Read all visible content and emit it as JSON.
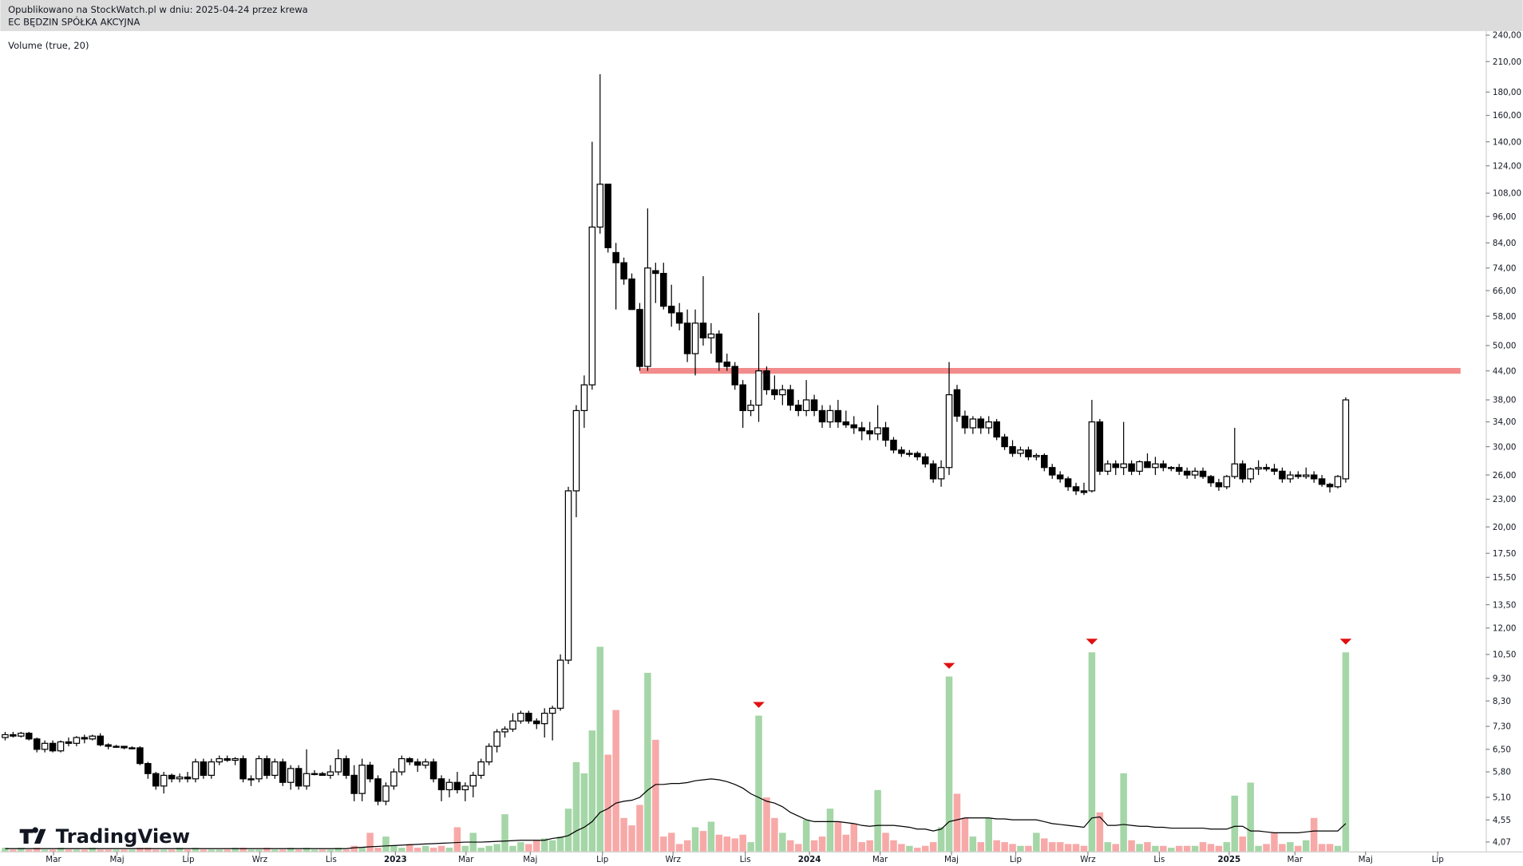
{
  "chart_data": {
    "type": "candlestick",
    "title": "EC BĘDZIN SPÓŁKA AKCYJNA",
    "subtitle": "Opublikowano na StockWatch.pl w dniu: 2025-04-24 przez krewa",
    "indicator_label": "Volume (true, 20)",
    "watermark": "TradingView",
    "log_scale": true,
    "ylim": [
      3.88,
      245
    ],
    "yticks": [
      {
        "value": 240,
        "label": "240,00"
      },
      {
        "value": 210,
        "label": "210,00"
      },
      {
        "value": 180,
        "label": "180,00"
      },
      {
        "value": 160,
        "label": "160,00"
      },
      {
        "value": 140,
        "label": "140,00"
      },
      {
        "value": 124,
        "label": "124,00"
      },
      {
        "value": 108,
        "label": "108,00"
      },
      {
        "value": 96,
        "label": "96,00"
      },
      {
        "value": 84,
        "label": "84,00"
      },
      {
        "value": 74,
        "label": "74,00"
      },
      {
        "value": 66,
        "label": "66,00"
      },
      {
        "value": 58,
        "label": "58,00"
      },
      {
        "value": 50,
        "label": "50,00"
      },
      {
        "value": 44,
        "label": "44,00"
      },
      {
        "value": 38,
        "label": "38,00"
      },
      {
        "value": 34,
        "label": "34,00"
      },
      {
        "value": 30,
        "label": "30,00"
      },
      {
        "value": 26,
        "label": "26,00"
      },
      {
        "value": 23,
        "label": "23,00"
      },
      {
        "value": 20,
        "label": "20,00"
      },
      {
        "value": 17.5,
        "label": "17,50"
      },
      {
        "value": 15.5,
        "label": "15,50"
      },
      {
        "value": 13.5,
        "label": "13,50"
      },
      {
        "value": 12,
        "label": "12,00"
      },
      {
        "value": 10.5,
        "label": "10,50"
      },
      {
        "value": 9.3,
        "label": "9,30"
      },
      {
        "value": 8.3,
        "label": "8,30"
      },
      {
        "value": 7.3,
        "label": "7,30"
      },
      {
        "value": 6.5,
        "label": "6,50"
      },
      {
        "value": 5.8,
        "label": "5,80"
      },
      {
        "value": 5.1,
        "label": "5,10"
      },
      {
        "value": 4.55,
        "label": "4,55"
      },
      {
        "value": 4.07,
        "label": "4,07"
      }
    ],
    "xlim": [
      -0.612,
      186.66
    ],
    "xticks": [
      {
        "value": 6.1,
        "label": "Mar"
      },
      {
        "value": 14.1,
        "label": "Maj"
      },
      {
        "value": 23.1,
        "label": "Lip"
      },
      {
        "value": 32.1,
        "label": "Wrz"
      },
      {
        "value": 41.1,
        "label": "Lis"
      },
      {
        "value": 49.2,
        "label": "2023"
      },
      {
        "value": 58.1,
        "label": "Mar"
      },
      {
        "value": 66.2,
        "label": "Maj"
      },
      {
        "value": 75.3,
        "label": "Lip"
      },
      {
        "value": 84.2,
        "label": "Wrz"
      },
      {
        "value": 93.3,
        "label": "Lis"
      },
      {
        "value": 101.4,
        "label": "2024"
      },
      {
        "value": 110.3,
        "label": "Mar"
      },
      {
        "value": 119.3,
        "label": "Maj"
      },
      {
        "value": 127.4,
        "label": "Lip"
      },
      {
        "value": 136.5,
        "label": "Wrz"
      },
      {
        "value": 145.5,
        "label": "Lis"
      },
      {
        "value": 154.3,
        "label": "2025"
      },
      {
        "value": 162.6,
        "label": "Mar"
      },
      {
        "value": 171.5,
        "label": "Maj"
      },
      {
        "value": 180.6,
        "label": "Lip"
      }
    ],
    "up_color": "#ffffff",
    "down_color": "#000000",
    "volume_up_color": "#a5d6a7",
    "volume_down_color": "#f7a9a8",
    "ma_color": "#000000",
    "signal_color": "#e01010",
    "hline": {
      "value": 44,
      "from": 80,
      "color": "#f28b8b"
    },
    "vlim": [
      0,
      120
    ],
    "signals": [
      95,
      119,
      137,
      169
    ],
    "ohlc": [
      [
        6.9,
        7.1,
        6.8,
        7.0
      ],
      [
        7.0,
        7.1,
        6.9,
        6.95
      ],
      [
        6.95,
        7.1,
        6.9,
        7.05
      ],
      [
        7.05,
        7.1,
        6.8,
        6.85
      ],
      [
        6.85,
        6.9,
        6.4,
        6.5
      ],
      [
        6.5,
        6.8,
        6.4,
        6.7
      ],
      [
        6.7,
        6.8,
        6.4,
        6.45
      ],
      [
        6.45,
        6.8,
        6.4,
        6.75
      ],
      [
        6.75,
        6.9,
        6.6,
        6.7
      ],
      [
        6.7,
        6.95,
        6.6,
        6.9
      ],
      [
        6.9,
        7.0,
        6.7,
        6.85
      ],
      [
        6.85,
        7.0,
        6.8,
        6.95
      ],
      [
        6.95,
        7.05,
        6.6,
        6.65
      ],
      [
        6.65,
        6.7,
        6.5,
        6.6
      ],
      [
        6.6,
        6.65,
        6.55,
        6.6
      ],
      [
        6.6,
        6.6,
        6.5,
        6.55
      ],
      [
        6.55,
        6.6,
        6.5,
        6.55
      ],
      [
        6.55,
        6.6,
        6.0,
        6.05
      ],
      [
        6.05,
        6.1,
        5.6,
        5.75
      ],
      [
        5.75,
        5.8,
        5.3,
        5.4
      ],
      [
        5.4,
        5.8,
        5.2,
        5.7
      ],
      [
        5.7,
        5.75,
        5.5,
        5.6
      ],
      [
        5.6,
        5.75,
        5.5,
        5.65
      ],
      [
        5.65,
        5.8,
        5.5,
        5.6
      ],
      [
        5.6,
        6.2,
        5.5,
        6.1
      ],
      [
        6.1,
        6.2,
        5.6,
        5.7
      ],
      [
        5.7,
        6.2,
        5.6,
        6.1
      ],
      [
        6.1,
        6.3,
        6.0,
        6.2
      ],
      [
        6.2,
        6.3,
        6.1,
        6.15
      ],
      [
        6.15,
        6.25,
        6.0,
        6.2
      ],
      [
        6.2,
        6.3,
        5.5,
        5.6
      ],
      [
        5.6,
        5.7,
        5.4,
        5.6
      ],
      [
        5.6,
        6.3,
        5.5,
        6.2
      ],
      [
        6.2,
        6.3,
        5.6,
        5.7
      ],
      [
        5.7,
        6.2,
        5.6,
        6.1
      ],
      [
        6.1,
        6.2,
        5.4,
        5.5
      ],
      [
        5.5,
        6.0,
        5.3,
        5.9
      ],
      [
        5.9,
        6.0,
        5.3,
        5.4
      ],
      [
        5.4,
        6.5,
        5.3,
        5.75
      ],
      [
        5.75,
        5.85,
        5.7,
        5.75
      ],
      [
        5.75,
        5.8,
        5.7,
        5.7
      ],
      [
        5.7,
        6.0,
        5.6,
        5.8
      ],
      [
        5.8,
        6.5,
        5.7,
        6.2
      ],
      [
        6.2,
        6.3,
        5.6,
        5.7
      ],
      [
        5.7,
        6.0,
        5.0,
        5.2
      ],
      [
        5.2,
        6.2,
        5.0,
        6.0
      ],
      [
        6.0,
        6.1,
        5.5,
        5.6
      ],
      [
        5.6,
        5.7,
        4.9,
        5.0
      ],
      [
        5.0,
        5.5,
        4.9,
        5.4
      ],
      [
        5.4,
        5.9,
        5.3,
        5.8
      ],
      [
        5.8,
        6.3,
        5.7,
        6.2
      ],
      [
        6.2,
        6.25,
        6.0,
        6.1
      ],
      [
        6.1,
        6.2,
        5.8,
        6.0
      ],
      [
        6.0,
        6.2,
        5.9,
        6.1
      ],
      [
        6.1,
        6.2,
        5.5,
        5.6
      ],
      [
        5.6,
        5.7,
        5.0,
        5.3
      ],
      [
        5.3,
        5.6,
        5.1,
        5.5
      ],
      [
        5.5,
        5.8,
        5.2,
        5.3
      ],
      [
        5.3,
        5.5,
        5.0,
        5.4
      ],
      [
        5.4,
        5.8,
        5.1,
        5.7
      ],
      [
        5.7,
        6.2,
        5.6,
        6.1
      ],
      [
        6.1,
        6.7,
        6.0,
        6.6
      ],
      [
        6.6,
        7.2,
        6.4,
        7.1
      ],
      [
        7.1,
        7.3,
        6.9,
        7.2
      ],
      [
        7.2,
        7.8,
        7.1,
        7.5
      ],
      [
        7.5,
        7.9,
        7.4,
        7.8
      ],
      [
        7.8,
        7.9,
        7.4,
        7.5
      ],
      [
        7.5,
        7.6,
        7.2,
        7.4
      ],
      [
        7.4,
        8.0,
        6.9,
        7.8
      ],
      [
        7.8,
        8.1,
        6.8,
        8.0
      ],
      [
        8.0,
        10.5,
        7.9,
        10.2
      ],
      [
        10.2,
        24.5,
        10.0,
        24.0
      ],
      [
        24.0,
        37,
        21,
        36
      ],
      [
        36,
        43,
        33,
        41
      ],
      [
        41,
        140,
        40,
        91
      ],
      [
        91,
        197,
        88,
        113
      ],
      [
        113,
        113,
        80,
        82
      ],
      [
        80,
        84,
        60,
        76
      ],
      [
        76,
        78,
        68,
        70
      ],
      [
        70,
        72,
        60,
        60
      ],
      [
        60,
        62,
        44,
        45
      ],
      [
        45,
        100,
        44,
        74
      ],
      [
        73,
        76,
        62,
        72
      ],
      [
        72,
        76,
        60,
        61
      ],
      [
        61,
        68,
        55,
        59
      ],
      [
        59,
        62,
        54,
        56
      ],
      [
        56,
        60,
        46,
        48
      ],
      [
        48,
        60,
        43,
        56
      ],
      [
        56,
        71,
        50,
        52
      ],
      [
        52,
        56,
        48,
        53
      ],
      [
        53,
        54,
        44,
        46
      ],
      [
        46,
        48,
        44,
        45
      ],
      [
        45,
        46,
        40,
        41
      ],
      [
        41,
        42,
        33,
        36
      ],
      [
        36,
        38,
        35,
        37
      ],
      [
        37,
        59,
        34,
        44
      ],
      [
        44,
        45,
        39,
        40
      ],
      [
        40,
        43,
        38,
        39
      ],
      [
        39,
        41,
        37,
        40
      ],
      [
        40,
        41,
        36,
        37
      ],
      [
        37,
        38,
        35,
        36
      ],
      [
        36,
        42,
        35,
        38
      ],
      [
        38,
        39,
        35,
        36
      ],
      [
        36,
        37,
        33,
        34
      ],
      [
        34,
        37,
        33,
        36
      ],
      [
        36,
        38,
        33,
        34
      ],
      [
        34,
        36,
        33,
        33.5
      ],
      [
        33.5,
        35,
        32,
        33
      ],
      [
        33,
        34,
        31,
        32.5
      ],
      [
        32.5,
        34,
        31,
        32
      ],
      [
        32,
        37,
        31,
        33
      ],
      [
        33,
        34,
        30,
        31
      ],
      [
        31,
        31.5,
        29,
        29.5
      ],
      [
        29.5,
        30,
        28.5,
        29
      ],
      [
        29,
        29.5,
        28.5,
        29
      ],
      [
        29,
        29.3,
        28,
        28.5
      ],
      [
        28.5,
        29,
        27,
        27.5
      ],
      [
        27.5,
        28,
        25,
        25.5
      ],
      [
        25.5,
        28,
        24.5,
        27
      ],
      [
        27,
        46,
        26,
        39
      ],
      [
        40,
        41,
        34,
        35
      ],
      [
        35,
        36,
        32,
        33
      ],
      [
        33,
        35,
        32,
        34.5
      ],
      [
        34.5,
        35,
        32,
        33
      ],
      [
        33,
        35,
        32,
        34
      ],
      [
        34,
        34.5,
        31,
        31.5
      ],
      [
        31.5,
        32,
        29.5,
        30
      ],
      [
        30,
        31,
        28.5,
        29
      ],
      [
        29,
        30,
        28.5,
        29.5
      ],
      [
        29.5,
        30,
        28,
        28.5
      ],
      [
        28.5,
        29,
        28,
        28.7
      ],
      [
        28.7,
        29,
        26.5,
        27
      ],
      [
        27,
        27.5,
        25.5,
        26
      ],
      [
        26,
        26.5,
        25,
        25.5
      ],
      [
        25.5,
        25.8,
        24,
        24.5
      ],
      [
        24.5,
        25,
        23.5,
        24
      ],
      [
        24,
        25,
        23.5,
        23.8
      ],
      [
        24,
        38,
        23.8,
        34
      ],
      [
        34,
        34.5,
        26,
        26.5
      ],
      [
        26.5,
        28,
        26,
        27.5
      ],
      [
        27.5,
        28,
        26,
        27
      ],
      [
        27,
        34,
        26,
        27.5
      ],
      [
        27.5,
        28,
        26,
        26.5
      ],
      [
        26.5,
        28,
        26,
        27.8
      ],
      [
        27.8,
        29,
        27,
        27
      ],
      [
        27,
        28.5,
        26,
        27.5
      ],
      [
        27.5,
        28,
        26.5,
        27
      ],
      [
        27,
        27.2,
        26.5,
        27
      ],
      [
        27,
        27.5,
        26,
        26.5
      ],
      [
        26.5,
        27,
        25.5,
        26
      ],
      [
        26,
        27,
        25.5,
        26.5
      ],
      [
        26.5,
        27,
        25.5,
        25.8
      ],
      [
        25.8,
        26,
        24.5,
        25
      ],
      [
        25,
        25.5,
        24,
        24.5
      ],
      [
        24.5,
        26,
        24.2,
        25.8
      ],
      [
        25.8,
        33,
        25.5,
        27.5
      ],
      [
        27.5,
        28,
        25,
        25.5
      ],
      [
        25.5,
        27,
        25,
        26.8
      ],
      [
        26.8,
        28,
        26,
        27
      ],
      [
        27,
        27.5,
        26.5,
        26.8
      ],
      [
        26.8,
        27.5,
        26,
        26.5
      ],
      [
        26.5,
        27,
        25,
        25.5
      ],
      [
        25.5,
        26.5,
        25,
        26
      ],
      [
        26,
        26.5,
        25.5,
        25.8
      ],
      [
        25.8,
        27,
        25.5,
        26
      ],
      [
        26,
        26.5,
        25,
        25.5
      ],
      [
        25.5,
        26,
        24.5,
        24.8
      ],
      [
        24.8,
        25,
        23.8,
        24.5
      ],
      [
        24.5,
        26,
        24.3,
        25.8
      ],
      [
        25.5,
        38.5,
        25,
        38
      ]
    ],
    "volume": [
      2,
      1,
      2,
      1,
      2,
      1,
      1,
      2,
      1,
      1,
      1,
      2,
      1,
      1,
      1,
      1,
      1,
      2,
      2,
      1,
      1,
      1,
      2,
      1,
      2,
      1,
      1,
      1,
      1,
      2,
      2,
      1,
      1,
      2,
      1,
      1,
      2,
      1,
      2,
      1,
      1,
      1,
      2,
      1,
      3,
      2,
      10,
      2,
      8,
      3,
      2,
      4,
      2,
      3,
      2,
      3,
      2,
      13,
      3,
      10,
      2,
      3,
      4,
      20,
      3,
      5,
      4,
      6,
      7,
      6,
      8,
      23,
      48,
      42,
      65,
      110,
      52,
      76,
      18,
      14,
      25,
      96,
      60,
      8,
      10,
      4,
      6,
      13,
      11,
      16,
      9,
      8,
      7,
      9,
      5,
      73,
      29,
      18,
      10,
      6,
      4,
      17,
      6,
      8,
      23,
      16,
      9,
      15,
      5,
      6,
      33,
      10,
      6,
      4,
      3,
      2,
      3,
      5,
      13,
      94,
      31,
      18,
      8,
      5,
      18,
      6,
      5,
      4,
      3,
      3,
      10,
      7,
      5,
      5,
      4,
      4,
      3,
      107,
      21,
      5,
      4,
      42,
      6,
      4,
      5,
      3,
      3,
      2,
      3,
      3,
      3,
      5,
      4,
      3,
      5,
      30,
      8,
      37,
      3,
      4,
      10,
      4,
      5,
      3,
      6,
      18,
      4,
      4,
      3,
      107
    ],
    "volume_ma": [
      1.5,
      1.5,
      1.5,
      1.5,
      1.5,
      1.5,
      1.5,
      1.5,
      1.5,
      1.5,
      1.5,
      1.5,
      1.5,
      1.5,
      1.5,
      1.5,
      1.5,
      1.5,
      1.5,
      1.5,
      1.5,
      1.5,
      1.5,
      1.5,
      1.5,
      1.5,
      1.5,
      1.5,
      1.5,
      1.5,
      1.5,
      1.5,
      1.5,
      1.5,
      1.5,
      1.5,
      1.5,
      1.5,
      1.5,
      1.5,
      1.5,
      1.5,
      1.5,
      1.5,
      2,
      2.2,
      2.5,
      2.7,
      3,
      3.2,
      3.4,
      3.6,
      3.8,
      4,
      4.2,
      4.4,
      4.6,
      4.8,
      5,
      5,
      5,
      5.2,
      5.4,
      5.6,
      5.8,
      6,
      6,
      6,
      6,
      7,
      7.5,
      8.5,
      11,
      13,
      16,
      21,
      23,
      26,
      27,
      27.5,
      29,
      33,
      36,
      36,
      36.5,
      36.5,
      37,
      38,
      38.5,
      39,
      38.5,
      37.5,
      36,
      34,
      31,
      29,
      27,
      26,
      24,
      21,
      19,
      17,
      16,
      16,
      16,
      16,
      15.5,
      15,
      14,
      13.5,
      14,
      14,
      14,
      13.5,
      13,
      12,
      12,
      11,
      12,
      16,
      17,
      18,
      18,
      18,
      18,
      17.5,
      17.5,
      17,
      17,
      17,
      17,
      16,
      15,
      14.5,
      14,
      13.5,
      13,
      18,
      18.5,
      14,
      14,
      14.5,
      14,
      13.5,
      13.5,
      13,
      13,
      12.5,
      12.5,
      12.5,
      12.5,
      12.5,
      12,
      12,
      12,
      13.5,
      13.5,
      11,
      11,
      10.5,
      10,
      10,
      10,
      10,
      10.5,
      11,
      11,
      11,
      11,
      15
    ]
  }
}
